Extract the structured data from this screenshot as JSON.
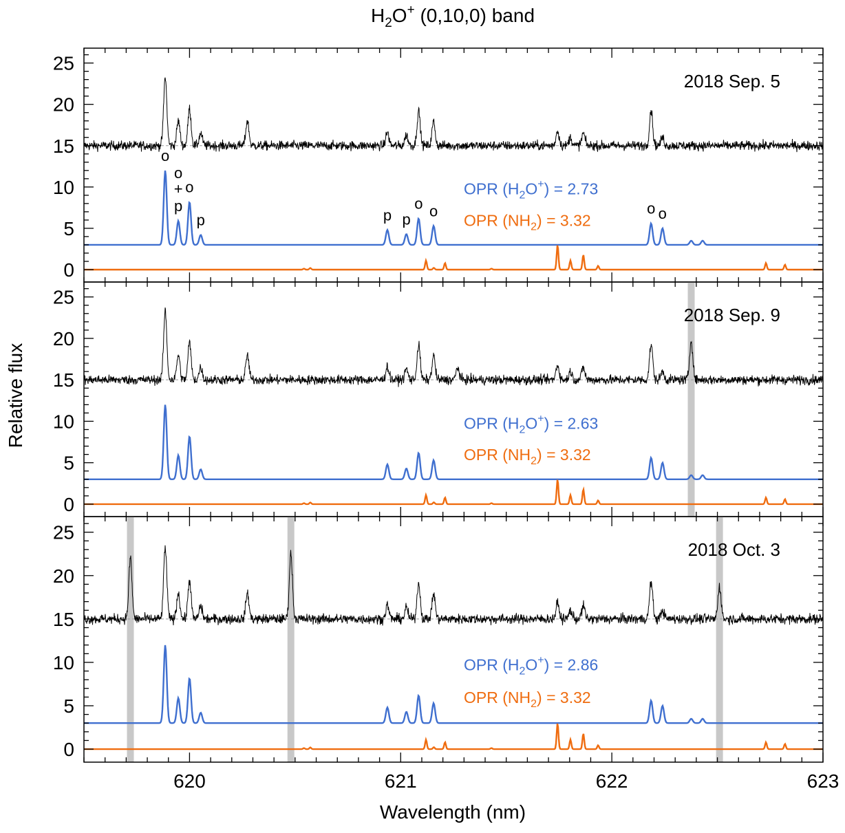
{
  "chart_data": {
    "type": "line",
    "title": "H2O+ (0,10,0) band",
    "title_parts": {
      "main": "H",
      "sub": "2",
      "mid": "O",
      "sup": "+",
      "tail": " (0,10,0) band"
    },
    "xlabel": "Wavelength (nm)",
    "ylabel": "Relative flux",
    "xlim": [
      619.5,
      623
    ],
    "x_ticks": [
      620,
      621,
      622,
      623
    ],
    "x_tick_labels": [
      "620",
      "621",
      "622",
      "623"
    ],
    "ylim": [
      -1.5,
      26.8
    ],
    "y_ticks": [
      0,
      5,
      10,
      15,
      20,
      25
    ],
    "y_tick_labels": [
      "0",
      "5",
      "10",
      "15",
      "20",
      "25"
    ],
    "colors": {
      "observed": "#000000",
      "h2o_model": "#3f6fcf",
      "nh2_model": "#ef6c0f",
      "telluric_band": "#c8c8c8",
      "continuum": "#9a9a9a"
    },
    "observed_baseline": 15,
    "h2o_model_baseline": 3,
    "nh2_model_baseline": 0,
    "h2o_lines": [
      {
        "x": 619.885,
        "height": 9.0,
        "label": "o"
      },
      {
        "x": 619.947,
        "height": 2.9,
        "label": "o+p"
      },
      {
        "x": 620.0,
        "height": 5.2,
        "label": "o"
      },
      {
        "x": 620.053,
        "height": 1.2,
        "label": "p"
      },
      {
        "x": 620.937,
        "height": 1.8,
        "label": "p"
      },
      {
        "x": 621.027,
        "height": 1.3,
        "label": "p"
      },
      {
        "x": 621.085,
        "height": 3.2,
        "label": "o"
      },
      {
        "x": 621.156,
        "height": 2.3,
        "label": "o"
      },
      {
        "x": 622.186,
        "height": 2.6,
        "label": "o"
      },
      {
        "x": 622.24,
        "height": 2.0,
        "label": "o"
      },
      {
        "x": 622.376,
        "height": 0.5,
        "label": ""
      },
      {
        "x": 622.43,
        "height": 0.5,
        "label": ""
      }
    ],
    "nh2_lines": [
      {
        "x": 620.542,
        "height": 0.12
      },
      {
        "x": 620.572,
        "height": 0.2
      },
      {
        "x": 621.12,
        "height": 1.1
      },
      {
        "x": 621.157,
        "height": 0.22
      },
      {
        "x": 621.21,
        "height": 0.8
      },
      {
        "x": 621.43,
        "height": 0.12
      },
      {
        "x": 621.743,
        "height": 3.0
      },
      {
        "x": 621.804,
        "height": 1.1
      },
      {
        "x": 621.865,
        "height": 1.8
      },
      {
        "x": 621.935,
        "height": 0.45
      },
      {
        "x": 622.73,
        "height": 0.8
      },
      {
        "x": 622.82,
        "height": 0.6
      }
    ],
    "observed_features": [
      {
        "x": 619.885,
        "height": 8.3
      },
      {
        "x": 619.947,
        "height": 3.0
      },
      {
        "x": 620.0,
        "height": 4.5
      },
      {
        "x": 620.053,
        "height": 1.5
      },
      {
        "x": 620.274,
        "height": 3.0
      },
      {
        "x": 620.937,
        "height": 1.6
      },
      {
        "x": 621.027,
        "height": 1.3
      },
      {
        "x": 621.085,
        "height": 4.2
      },
      {
        "x": 621.156,
        "height": 2.9
      },
      {
        "x": 621.743,
        "height": 1.8
      },
      {
        "x": 621.804,
        "height": 1.0
      },
      {
        "x": 621.865,
        "height": 1.5
      },
      {
        "x": 622.186,
        "height": 4.3
      },
      {
        "x": 622.24,
        "height": 1.0
      }
    ],
    "panels": [
      {
        "date": "2018 Sep. 5",
        "opr_h2o_label": "OPR (H",
        "opr_h2o_value": "2.73",
        "opr_nh2_label": "OPR (NH",
        "opr_nh2_value": "3.32",
        "telluric": [],
        "extra_features": [],
        "show_line_labels": true
      },
      {
        "date": "2018 Sep. 9",
        "opr_h2o_label": "OPR (H",
        "opr_h2o_value": "2.63",
        "opr_nh2_label": "OPR (NH",
        "opr_nh2_value": "3.32",
        "telluric": [
          622.376
        ],
        "extra_features": [
          {
            "x": 622.376,
            "height": 4.8
          },
          {
            "x": 621.27,
            "height": 1.5
          }
        ],
        "show_line_labels": false
      },
      {
        "date": "2018 Oct. 3",
        "opr_h2o_label": "OPR (H",
        "opr_h2o_value": "2.86",
        "opr_nh2_label": "OPR (NH",
        "opr_nh2_value": "3.32",
        "telluric": [
          619.72,
          620.48,
          622.51
        ],
        "extra_features": [
          {
            "x": 619.72,
            "height": 7.0
          },
          {
            "x": 620.48,
            "height": 7.5
          },
          {
            "x": 622.51,
            "height": 3.8
          }
        ],
        "show_line_labels": false
      }
    ]
  }
}
